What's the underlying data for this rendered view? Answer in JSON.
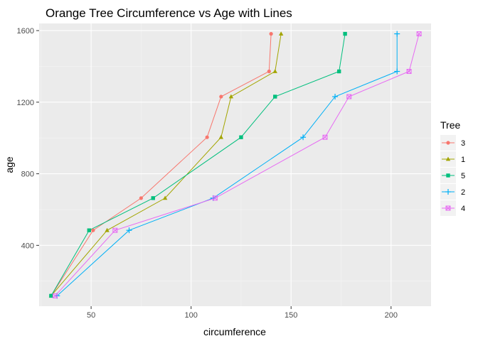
{
  "chart_data": {
    "type": "line",
    "title": "Orange Tree Circumference vs Age with Lines",
    "xlabel": "circumference",
    "ylabel": "age",
    "xlim": [
      24,
      220
    ],
    "ylim": [
      60,
      1640
    ],
    "xticks": [
      50,
      100,
      150,
      200
    ],
    "yticks": [
      400,
      800,
      1200,
      1600
    ],
    "grid": true,
    "legend": {
      "title": "Tree",
      "placement": "right"
    },
    "x_age": [
      118,
      484,
      664,
      1004,
      1231,
      1372,
      1582
    ],
    "series": [
      {
        "name": "3",
        "color": "#F8766D",
        "marker": "circle",
        "points": [
          [
            30,
            118
          ],
          [
            51,
            484
          ],
          [
            75,
            664
          ],
          [
            108,
            1004
          ],
          [
            115,
            1231
          ],
          [
            139,
            1372
          ],
          [
            140,
            1582
          ]
        ]
      },
      {
        "name": "1",
        "color": "#A3A500",
        "marker": "triangle",
        "points": [
          [
            30,
            118
          ],
          [
            58,
            484
          ],
          [
            87,
            664
          ],
          [
            115,
            1004
          ],
          [
            120,
            1231
          ],
          [
            142,
            1372
          ],
          [
            145,
            1582
          ]
        ]
      },
      {
        "name": "5",
        "color": "#00BF7D",
        "marker": "square",
        "points": [
          [
            30,
            118
          ],
          [
            49,
            484
          ],
          [
            81,
            664
          ],
          [
            125,
            1004
          ],
          [
            142,
            1231
          ],
          [
            174,
            1372
          ],
          [
            177,
            1582
          ]
        ]
      },
      {
        "name": "2",
        "color": "#00B0F6",
        "marker": "plus",
        "points": [
          [
            33,
            118
          ],
          [
            69,
            484
          ],
          [
            111,
            664
          ],
          [
            156,
            1004
          ],
          [
            172,
            1231
          ],
          [
            203,
            1372
          ],
          [
            203,
            1582
          ]
        ]
      },
      {
        "name": "4",
        "color": "#E76BF3",
        "marker": "squarecross",
        "points": [
          [
            32,
            118
          ],
          [
            62,
            484
          ],
          [
            112,
            664
          ],
          [
            167,
            1004
          ],
          [
            179,
            1231
          ],
          [
            209,
            1372
          ],
          [
            214,
            1582
          ]
        ]
      }
    ]
  }
}
